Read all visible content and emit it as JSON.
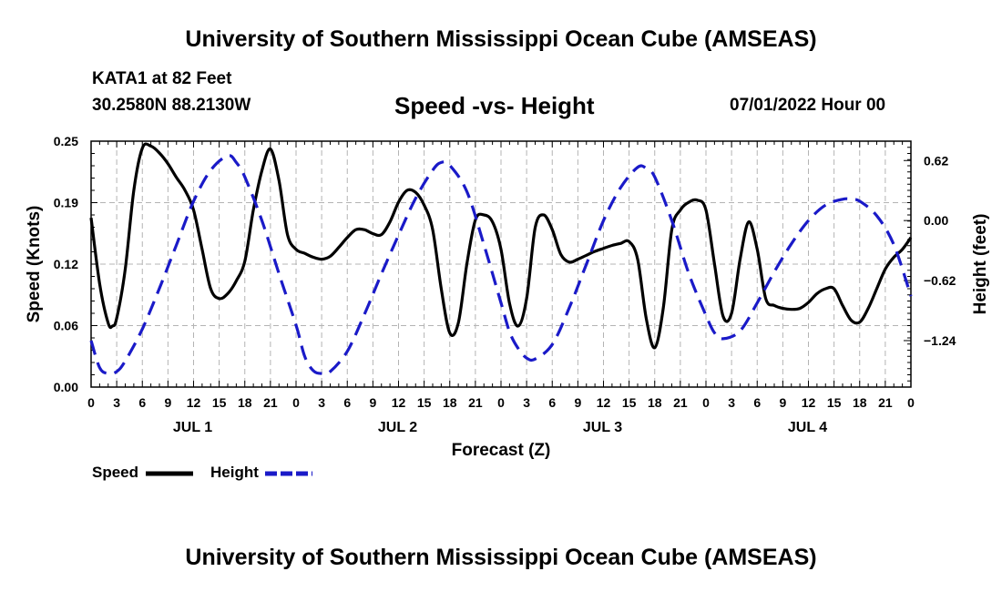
{
  "header": {
    "title": "University of Southern Mississippi Ocean Cube (AMSEAS)",
    "station": "KATA1 at 82 Feet",
    "coords": "30.2580N  88.2130W",
    "subtitle": "Speed -vs- Height",
    "date": "07/01/2022 Hour 00"
  },
  "footer": {
    "title": "University of Southern Mississippi Ocean Cube (AMSEAS)"
  },
  "chart_data": {
    "type": "line",
    "title": "Speed -vs- Height",
    "xlabel": "Forecast (Z)",
    "ylabel": "Speed (Knots)",
    "y2label": "Height (feet)",
    "xlim": [
      0,
      96
    ],
    "ylim": [
      0,
      0.25
    ],
    "y2lim": [
      -1.72,
      0.82
    ],
    "y_ticks": [
      "0.00",
      "0.06",
      "0.12",
      "0.19",
      "0.25"
    ],
    "y_tick_values": [
      0,
      0.0625,
      0.125,
      0.1875,
      0.25
    ],
    "y2_ticks": [
      "0.62",
      "0.00",
      "−0.62",
      "−1.24"
    ],
    "y2_tick_values": [
      0.62,
      0,
      -0.62,
      -1.24
    ],
    "x_tick_labels": [
      "0",
      "3",
      "6",
      "9",
      "12",
      "15",
      "18",
      "21",
      "0",
      "3",
      "6",
      "9",
      "12",
      "15",
      "18",
      "21",
      "0",
      "3",
      "6",
      "9",
      "12",
      "15",
      "18",
      "21",
      "0",
      "3",
      "6",
      "9",
      "12",
      "15",
      "18",
      "21",
      "0"
    ],
    "day_labels": [
      {
        "label": "JUL 1",
        "hour": 12
      },
      {
        "label": "JUL 2",
        "hour": 36
      },
      {
        "label": "JUL 3",
        "hour": 60
      },
      {
        "label": "JUL 4",
        "hour": 84
      }
    ],
    "grid": true,
    "legend": [
      {
        "name": "Speed",
        "color": "#000000",
        "style": "solid"
      },
      {
        "name": "Height",
        "color": "#1a1ac8",
        "style": "dashed"
      }
    ],
    "series": [
      {
        "name": "Speed",
        "axis": "left",
        "x": [
          0,
          1,
          2,
          2.5,
          3,
          4,
          5,
          6,
          7,
          8,
          9,
          10,
          11,
          12,
          13,
          14,
          15,
          16,
          17,
          18,
          19,
          20,
          21,
          22,
          23,
          24,
          25,
          26,
          27,
          28,
          29,
          30,
          31,
          32,
          33,
          34,
          35,
          36,
          37,
          38,
          39,
          40,
          41,
          42,
          43,
          44,
          45,
          46,
          47,
          48,
          49,
          50,
          51,
          52,
          53,
          54,
          55,
          56,
          57,
          58,
          59,
          60,
          61,
          62,
          63,
          64,
          65,
          66,
          67,
          68,
          69,
          70,
          71,
          72,
          73,
          74,
          75,
          76,
          77,
          78,
          79,
          80,
          81,
          82,
          83,
          84,
          85,
          86,
          87,
          88,
          89,
          90,
          91,
          92,
          93,
          94,
          95,
          96
        ],
        "values": [
          0.172,
          0.105,
          0.065,
          0.062,
          0.07,
          0.12,
          0.2,
          0.243,
          0.245,
          0.238,
          0.227,
          0.213,
          0.2,
          0.18,
          0.14,
          0.1,
          0.09,
          0.095,
          0.108,
          0.128,
          0.18,
          0.22,
          0.242,
          0.21,
          0.155,
          0.14,
          0.136,
          0.132,
          0.13,
          0.133,
          0.142,
          0.152,
          0.16,
          0.16,
          0.156,
          0.155,
          0.168,
          0.188,
          0.2,
          0.198,
          0.185,
          0.16,
          0.1,
          0.055,
          0.065,
          0.125,
          0.17,
          0.175,
          0.168,
          0.14,
          0.085,
          0.062,
          0.09,
          0.162,
          0.175,
          0.16,
          0.135,
          0.127,
          0.13,
          0.134,
          0.138,
          0.141,
          0.144,
          0.146,
          0.148,
          0.13,
          0.07,
          0.04,
          0.08,
          0.16,
          0.18,
          0.188,
          0.19,
          0.18,
          0.125,
          0.072,
          0.075,
          0.13,
          0.168,
          0.14,
          0.09,
          0.083,
          0.08,
          0.079,
          0.08,
          0.086,
          0.095,
          0.1,
          0.1,
          0.083,
          0.068,
          0.066,
          0.08,
          0.1,
          0.12,
          0.132,
          0.14,
          0.152
        ]
      },
      {
        "name": "Height",
        "axis": "right",
        "x": [
          0,
          1,
          2,
          3,
          4,
          6,
          8,
          10,
          12,
          14,
          16,
          17,
          18,
          20,
          22,
          24,
          25,
          26,
          27,
          28,
          30,
          32,
          34,
          36,
          38,
          40,
          41,
          42,
          44,
          46,
          48,
          49,
          50,
          51,
          52,
          54,
          56,
          58,
          60,
          62,
          64,
          65,
          66,
          68,
          70,
          72,
          73,
          74,
          76,
          78,
          80,
          82,
          84,
          86,
          88,
          89,
          90,
          92,
          94,
          96
        ],
        "values": [
          -1.24,
          -1.52,
          -1.58,
          -1.56,
          -1.45,
          -1.12,
          -0.7,
          -0.25,
          0.2,
          0.52,
          0.67,
          0.6,
          0.45,
          0.0,
          -0.55,
          -1.08,
          -1.4,
          -1.55,
          -1.58,
          -1.56,
          -1.35,
          -0.97,
          -0.55,
          -0.15,
          0.23,
          0.52,
          0.6,
          0.57,
          0.3,
          -0.25,
          -0.85,
          -1.15,
          -1.32,
          -1.42,
          -1.43,
          -1.28,
          -0.9,
          -0.45,
          0.0,
          0.34,
          0.55,
          0.54,
          0.45,
          0.0,
          -0.55,
          -0.98,
          -1.16,
          -1.22,
          -1.14,
          -0.85,
          -0.53,
          -0.24,
          0.0,
          0.16,
          0.22,
          0.22,
          0.2,
          0.05,
          -0.25,
          -0.78
        ]
      }
    ]
  }
}
